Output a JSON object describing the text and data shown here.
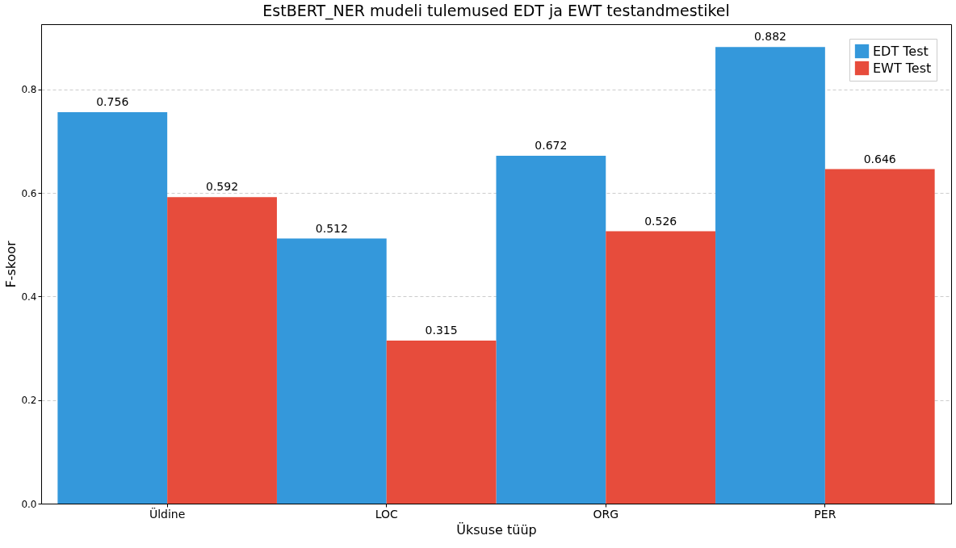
{
  "chart_data": {
    "type": "bar",
    "title": "EstBERT_NER mudeli tulemused EDT ja EWT testandmestikel",
    "xlabel": "Üksuse tüüp",
    "ylabel": "F-skoor",
    "categories": [
      "Üldine",
      "LOC",
      "ORG",
      "PER"
    ],
    "series": [
      {
        "name": "EDT Test",
        "color": "#3498db",
        "values": [
          0.756,
          0.512,
          0.672,
          0.882
        ]
      },
      {
        "name": "EWT Test",
        "color": "#e74c3c",
        "values": [
          0.592,
          0.315,
          0.526,
          0.646
        ]
      }
    ],
    "ylim": [
      0,
      0.926
    ],
    "yticks": [
      {
        "value": 0,
        "label": "0.0"
      },
      {
        "value": 0.2,
        "label": "0.2"
      },
      {
        "value": 0.4,
        "label": "0.4"
      },
      {
        "value": 0.6,
        "label": "0.6"
      },
      {
        "value": 0.8,
        "label": "0.8"
      }
    ],
    "grid": "y",
    "legend": "top right",
    "data_labels": true
  }
}
